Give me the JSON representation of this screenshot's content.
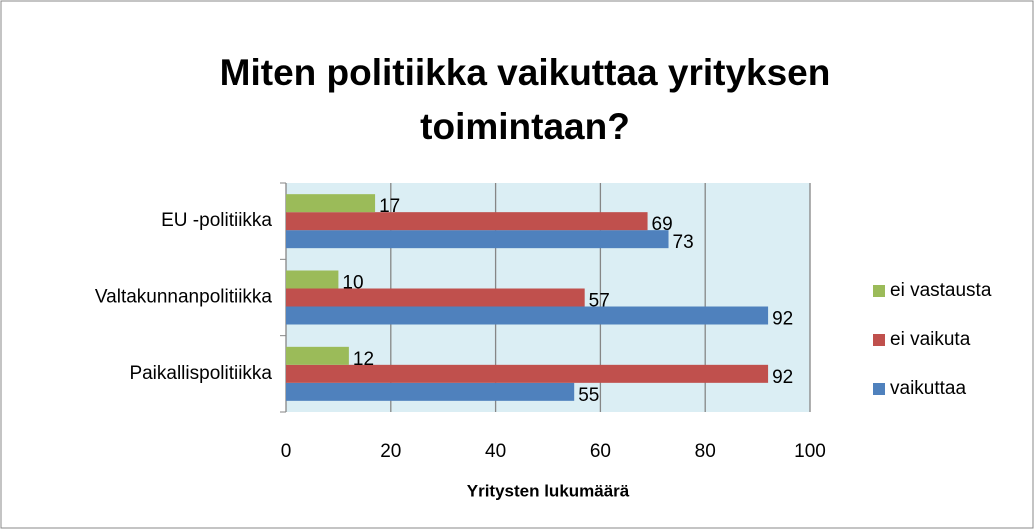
{
  "chart_data": {
    "type": "hbar",
    "title": "Miten politiikka vaikuttaa yrityksen toimintaan?",
    "xlabel": "Yritysten lukumäärä",
    "categories": [
      "Paikallispolitiikka",
      "Valtakunnanpolitiikka",
      "EU -politiikka"
    ],
    "series": [
      {
        "name": "vaikuttaa",
        "color": "#4f81bd",
        "values": [
          55,
          92,
          73
        ]
      },
      {
        "name": "ei vaikuta",
        "color": "#c0504d",
        "values": [
          92,
          57,
          69
        ]
      },
      {
        "name": "ei vastausta",
        "color": "#9bbb59",
        "values": [
          12,
          10,
          17
        ]
      }
    ],
    "xlim": [
      0,
      100
    ],
    "xticks": [
      0,
      20,
      40,
      60,
      80,
      100
    ],
    "grid": true,
    "legend": "right"
  }
}
